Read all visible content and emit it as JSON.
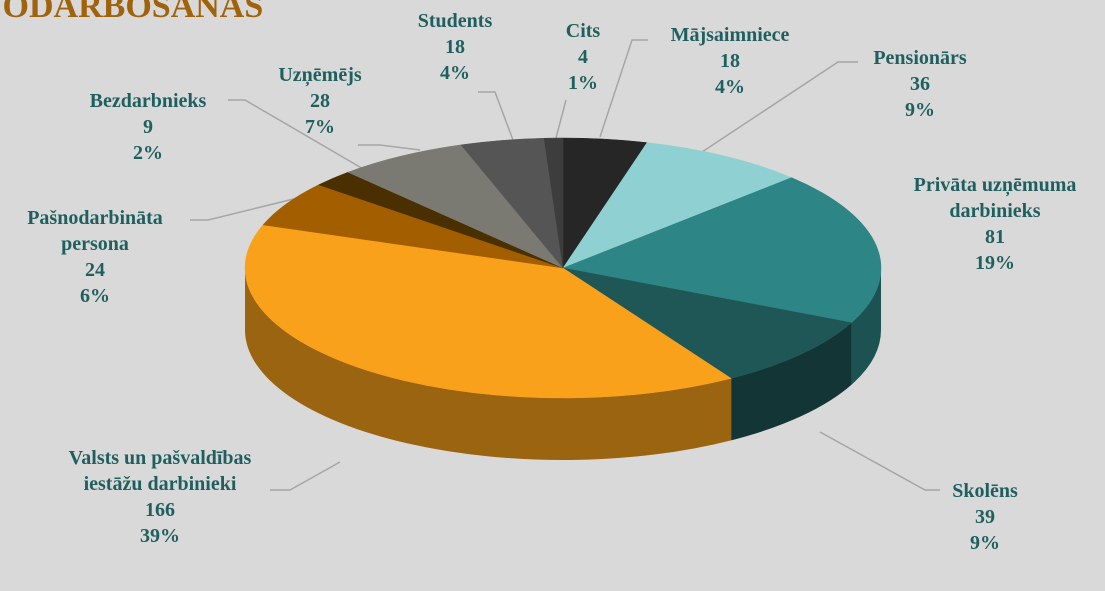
{
  "chart_data": {
    "type": "pie",
    "title": "NODARBOŠANĀS",
    "categories": [
      "Mājsaimniece",
      "Pensionārs",
      "Privāta uzņēmuma darbinieks",
      "Skolēns",
      "Valsts un pašvaldības iestāžu darbinieki",
      "Pašnodarbināta persona",
      "Bezdarbnieks",
      "Uzņēmējs",
      "Students",
      "Cits"
    ],
    "values": [
      18,
      36,
      81,
      39,
      166,
      24,
      9,
      28,
      18,
      4
    ],
    "percent_labels": [
      "4%",
      "9%",
      "19%",
      "9%",
      "39%",
      "6%",
      "2%",
      "7%",
      "4%",
      "1%"
    ],
    "colors": [
      "#262626",
      "#8fd0d3",
      "#2e8585",
      "#1f5656",
      "#f9a11b",
      "#a35e00",
      "#4a3000",
      "#7a7a72",
      "#555555",
      "#3d3d3d"
    ]
  }
}
